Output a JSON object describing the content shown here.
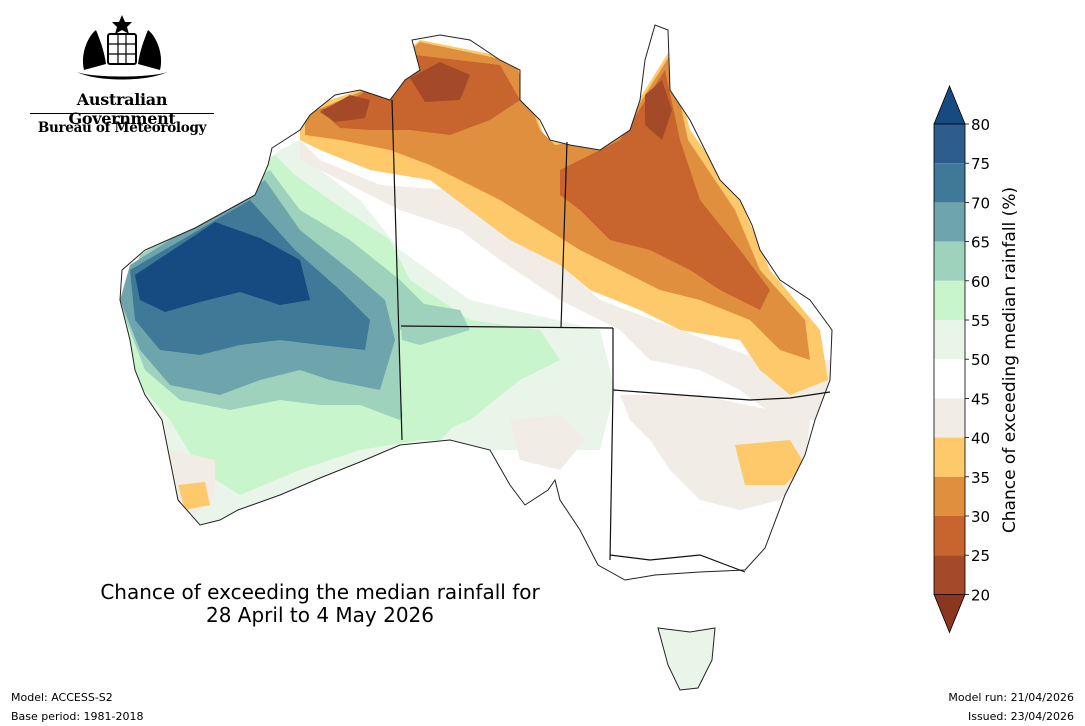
{
  "logo": {
    "government": "Australian Government",
    "agency": "Bureau of Meteorology",
    "emblem_icon": "coat-of-arms-icon"
  },
  "title": {
    "line1": "Chance of exceeding the median rainfall for",
    "line2": "28 April to 4 May 2026"
  },
  "colorbar": {
    "label": "Chance of exceeding median rainfall (%)",
    "ticks": [
      "80",
      "75",
      "70",
      "65",
      "60",
      "55",
      "50",
      "45",
      "40",
      "35",
      "30",
      "25",
      "20"
    ],
    "bins": [
      {
        "range": "75-80",
        "color": "#2d5d8c"
      },
      {
        "range": "70-75",
        "color": "#3e7a98"
      },
      {
        "range": "65-70",
        "color": "#6ea5ad"
      },
      {
        "range": "60-65",
        "color": "#9fd2bd"
      },
      {
        "range": "55-60",
        "color": "#c8f5cb"
      },
      {
        "range": "50-55",
        "color": "#eaf5ea"
      },
      {
        "range": "45-50",
        "color": "#ffffff"
      },
      {
        "range": "40-45",
        "color": "#f1ece6"
      },
      {
        "range": "35-40",
        "color": "#fdc96b"
      },
      {
        "range": "30-35",
        "color": "#df8f3e"
      },
      {
        "range": "25-30",
        "color": "#c8642e"
      },
      {
        "range": "20-25",
        "color": "#a44a28"
      }
    ],
    "over_color": "#164b81",
    "under_color": "#8b3620"
  },
  "footer": {
    "model": "Model: ACCESS-S2",
    "base_period": "Base period: 1981-2018",
    "model_run": "Model run: 21/04/2026",
    "issued": "Issued: 23/04/2026"
  }
}
